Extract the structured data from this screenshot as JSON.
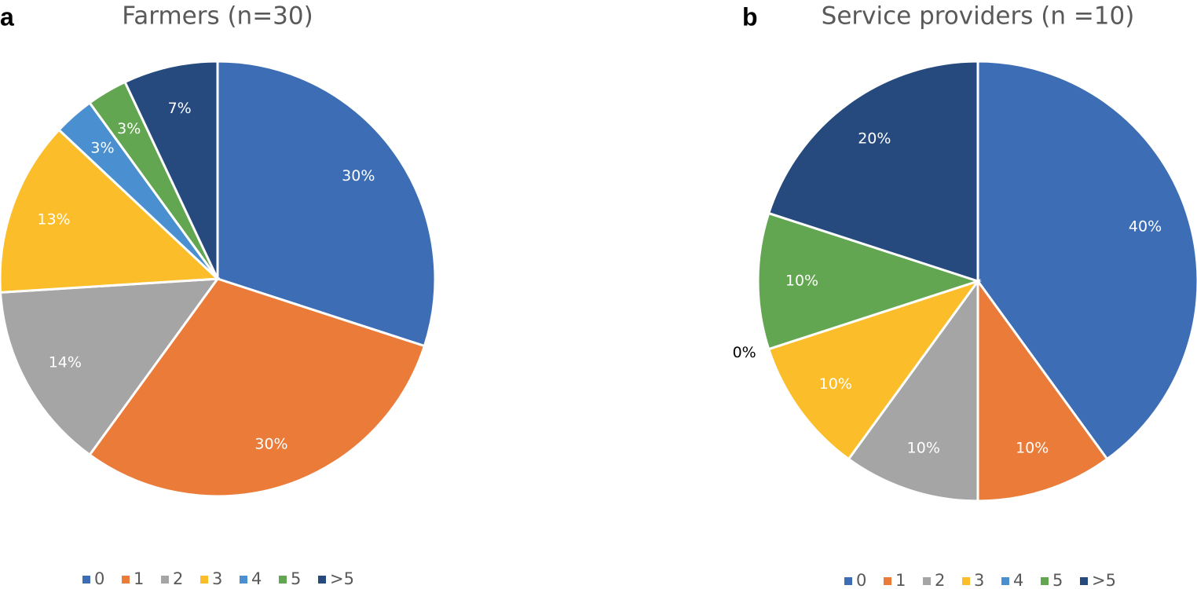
{
  "chart_data": [
    {
      "type": "pie",
      "panel_label": "a",
      "title": "Farmers (n=30)",
      "categories": [
        "0",
        "1",
        "2",
        "3",
        "4",
        "5",
        ">5"
      ],
      "values": [
        30,
        30,
        14,
        13,
        3,
        3,
        7
      ],
      "value_labels": [
        "30%",
        "30%",
        "14%",
        "13%",
        "3%",
        "3%",
        "7%"
      ],
      "colors": [
        "#3d6db5",
        "#ea7b39",
        "#a5a5a5",
        "#fbbd2a",
        "#4a90d0",
        "#63a651",
        "#264a7e"
      ]
    },
    {
      "type": "pie",
      "panel_label": "b",
      "title": "Service providers (n =10)",
      "categories": [
        "0",
        "1",
        "2",
        "3",
        "4",
        "5",
        ">5"
      ],
      "values": [
        40,
        10,
        10,
        10,
        0,
        10,
        20
      ],
      "value_labels": [
        "40%",
        "10%",
        "10%",
        "10%",
        "0%",
        "10%",
        "20%"
      ],
      "colors": [
        "#3d6db5",
        "#ea7b39",
        "#a5a5a5",
        "#fbbd2a",
        "#4a90d0",
        "#63a651",
        "#264a7e"
      ]
    }
  ]
}
